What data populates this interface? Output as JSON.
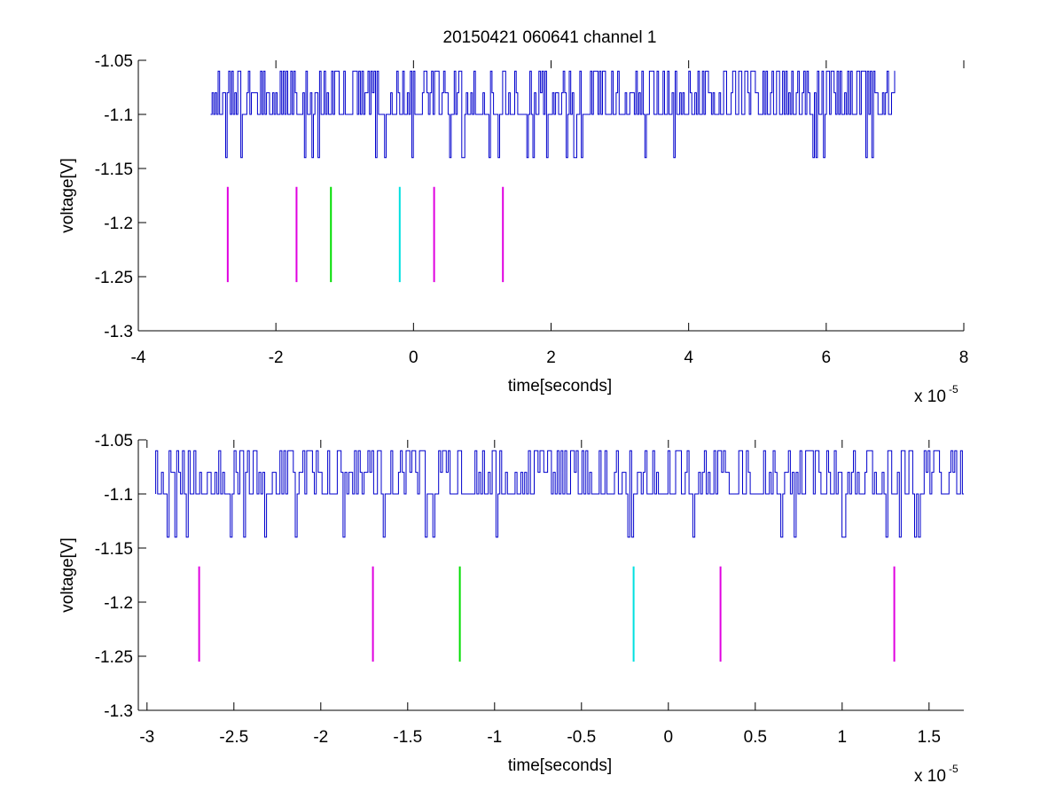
{
  "figure": {
    "title": "20150421 060641 channel 1"
  },
  "chart_data": [
    {
      "type": "line",
      "title": "20150421 060641 channel 1",
      "xlabel": "time[seconds]",
      "ylabel": "voltage[V]",
      "x_multiplier": "x 10",
      "x_multiplier_exp": "-5",
      "xlim": [
        -4,
        8
      ],
      "ylim": [
        -1.3,
        -1.05
      ],
      "xticks": [
        -4,
        -2,
        0,
        2,
        4,
        6,
        8
      ],
      "xtick_labels": [
        "-4",
        "-2",
        "0",
        "2",
        "4",
        "6",
        "8"
      ],
      "yticks": [
        -1.3,
        -1.25,
        -1.2,
        -1.15,
        -1.1,
        -1.05
      ],
      "ytick_labels": [
        "-1.3",
        "-1.25",
        "-1.2",
        "-1.15",
        "-1.1",
        "-1.05"
      ],
      "grid": false,
      "signal": {
        "color": "#0000cc",
        "x_start": -2.95,
        "x_end": 7.0,
        "levels": [
          -1.06,
          -1.08,
          -1.1,
          -1.14
        ],
        "baseline": -1.1
      },
      "markers": [
        {
          "x": -2.7,
          "y0": -1.167,
          "y1": -1.255,
          "color": "#e000e0"
        },
        {
          "x": -1.7,
          "y0": -1.167,
          "y1": -1.255,
          "color": "#e000e0"
        },
        {
          "x": -1.2,
          "y0": -1.167,
          "y1": -1.255,
          "color": "#00dd00"
        },
        {
          "x": -0.2,
          "y0": -1.167,
          "y1": -1.255,
          "color": "#00e0e0"
        },
        {
          "x": 0.3,
          "y0": -1.167,
          "y1": -1.255,
          "color": "#e000e0"
        },
        {
          "x": 1.3,
          "y0": -1.167,
          "y1": -1.255,
          "color": "#e000e0"
        }
      ]
    },
    {
      "type": "line",
      "title": "",
      "xlabel": "time[seconds]",
      "ylabel": "voltage[V]",
      "x_multiplier": "x 10",
      "x_multiplier_exp": "-5",
      "xlim": [
        -3.05,
        1.7
      ],
      "ylim": [
        -1.3,
        -1.05
      ],
      "xticks": [
        -3,
        -2.5,
        -2,
        -1.5,
        -1,
        -0.5,
        0,
        0.5,
        1,
        1.5
      ],
      "xtick_labels": [
        "-3",
        "-2.5",
        "-2",
        "-1.5",
        "-1",
        "-0.5",
        "0",
        "0.5",
        "1",
        "1.5"
      ],
      "yticks": [
        -1.3,
        -1.25,
        -1.2,
        -1.15,
        -1.1,
        -1.05
      ],
      "ytick_labels": [
        "-1.3",
        "-1.25",
        "-1.2",
        "-1.15",
        "-1.1",
        "-1.05"
      ],
      "grid": false,
      "signal": {
        "color": "#0000cc",
        "x_start": -2.95,
        "x_end": 1.7,
        "levels": [
          -1.06,
          -1.08,
          -1.1,
          -1.14
        ],
        "baseline": -1.1
      },
      "markers": [
        {
          "x": -2.7,
          "y0": -1.167,
          "y1": -1.255,
          "color": "#e000e0"
        },
        {
          "x": -1.7,
          "y0": -1.167,
          "y1": -1.255,
          "color": "#e000e0"
        },
        {
          "x": -1.2,
          "y0": -1.167,
          "y1": -1.255,
          "color": "#00dd00"
        },
        {
          "x": -0.2,
          "y0": -1.167,
          "y1": -1.255,
          "color": "#00e0e0"
        },
        {
          "x": 0.3,
          "y0": -1.167,
          "y1": -1.255,
          "color": "#e000e0"
        },
        {
          "x": 1.3,
          "y0": -1.167,
          "y1": -1.255,
          "color": "#e000e0"
        }
      ]
    }
  ]
}
